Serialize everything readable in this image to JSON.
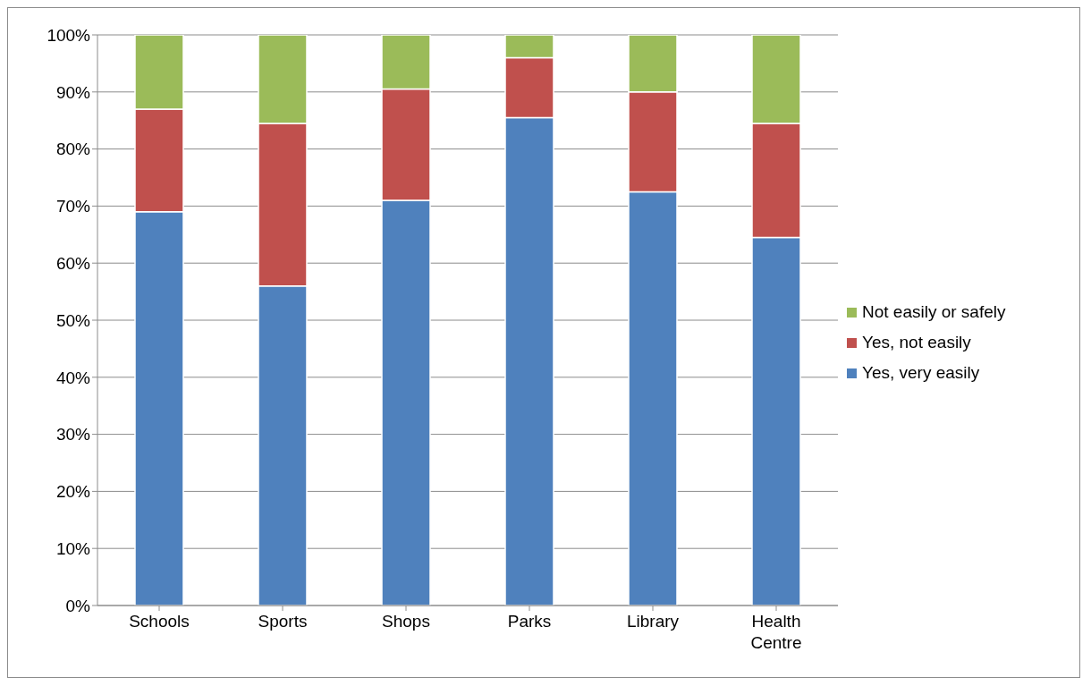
{
  "chart_data": {
    "type": "bar",
    "stacked": true,
    "categories": [
      "Schools",
      "Sports",
      "Shops",
      "Parks",
      "Library",
      "Health Centre"
    ],
    "series": [
      {
        "name": "Yes, very easily",
        "color": "#4f81bd",
        "values": [
          69,
          56,
          71,
          85.5,
          72.5,
          64.5
        ]
      },
      {
        "name": "Yes, not easily",
        "color": "#c0504d",
        "values": [
          18,
          28.5,
          19.5,
          10.5,
          17.5,
          20
        ]
      },
      {
        "name": "Not easily or safely",
        "color": "#9bbb59",
        "values": [
          13,
          15.5,
          9.5,
          4,
          10,
          15.5
        ]
      }
    ],
    "ylim": [
      0,
      100
    ],
    "yticks": [
      {
        "value": 0,
        "label": "0%"
      },
      {
        "value": 10,
        "label": "10%"
      },
      {
        "value": 20,
        "label": "20%"
      },
      {
        "value": 30,
        "label": "30%"
      },
      {
        "value": 40,
        "label": "40%"
      },
      {
        "value": 50,
        "label": "50%"
      },
      {
        "value": 60,
        "label": "60%"
      },
      {
        "value": 70,
        "label": "70%"
      },
      {
        "value": 80,
        "label": "80%"
      },
      {
        "value": 90,
        "label": "90%"
      },
      {
        "value": 100,
        "label": "100%"
      }
    ],
    "grid": "y",
    "legend": "right"
  }
}
